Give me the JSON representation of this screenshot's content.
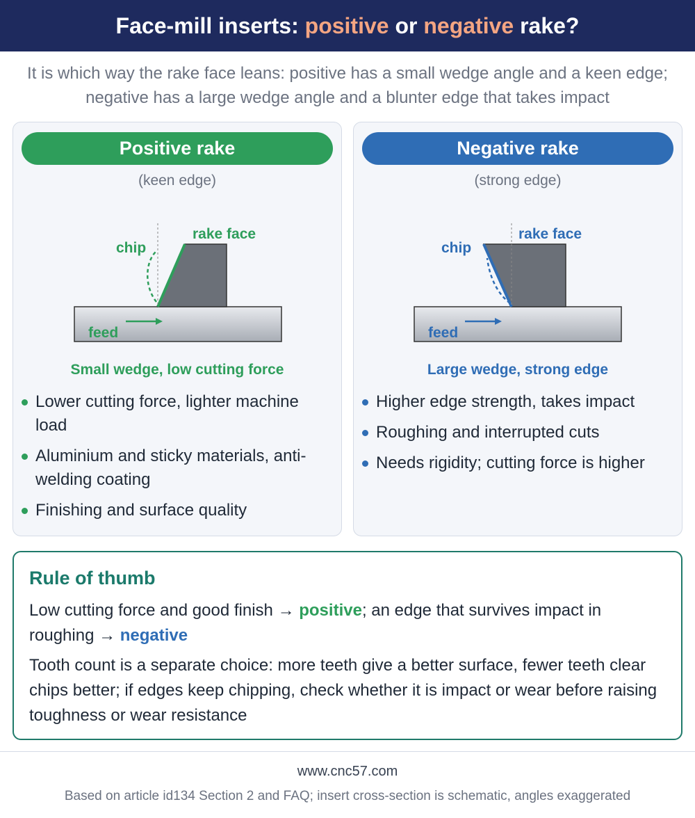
{
  "header": {
    "title_parts": [
      "Face-mill inserts: ",
      "positive",
      " or ",
      "negative",
      " rake?"
    ],
    "subtitle": "It is which way the rake face leans: positive has a small wedge angle and a keen edge; negative has a large wedge angle and a blunter edge that takes impact"
  },
  "panels": [
    {
      "title": "Positive rake",
      "note": "(keen edge)",
      "chip": "chip",
      "rake_face": "rake face",
      "feed": "feed",
      "caption": "Small wedge, low cutting force",
      "bullets": [
        "Lower cutting force, lighter machine load",
        "Aluminium and sticky materials, anti-welding coating",
        "Finishing and surface quality"
      ]
    },
    {
      "title": "Negative rake",
      "note": "(strong edge)",
      "chip": "chip",
      "rake_face": "rake face",
      "feed": "feed",
      "caption": "Large wedge, strong edge",
      "bullets": [
        "Higher edge strength, takes impact",
        "Roughing and interrupted cuts",
        "Needs rigidity; cutting force is higher"
      ]
    }
  ],
  "rule": {
    "title": "Rule of thumb",
    "line1_parts": [
      "Low cutting force and good finish → ",
      "positive",
      "; an edge that survives impact in roughing → ",
      "negative"
    ],
    "line2": "Tooth count is a separate choice: more teeth give a better surface, fewer teeth clear chips better; if edges keep chipping, check whether it is impact or wear before raising toughness or wear resistance"
  },
  "footer": {
    "site": "www.cnc57.com",
    "note": "Based on article id134 Section 2 and FAQ; insert cross-section is schematic, angles exaggerated"
  }
}
